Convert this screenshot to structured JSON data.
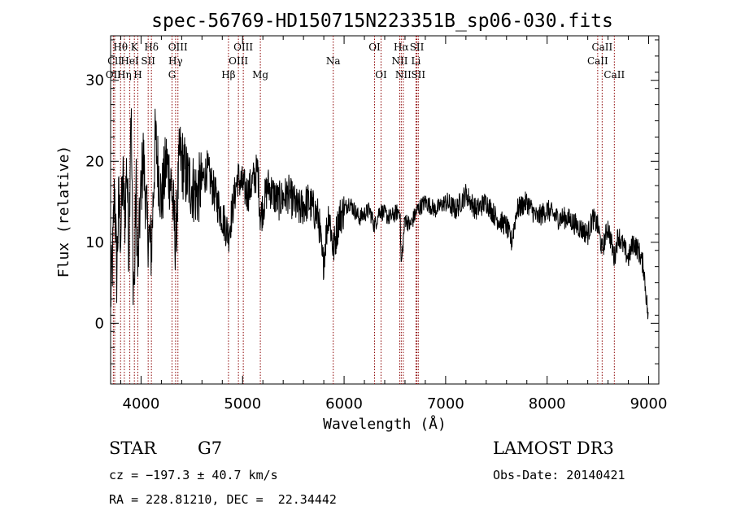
{
  "chart_data": {
    "type": "line",
    "title": "spec-56769-HD150715N223351B_sp06-030.fits",
    "xlabel": "Wavelength (Å)",
    "ylabel": "Flux (relative)",
    "xlim": [
      3700,
      9100
    ],
    "ylim": [
      -7.5,
      35.5
    ],
    "x_ticks": [
      "4000",
      "5000",
      "6000",
      "7000",
      "8000",
      "9000"
    ],
    "y_ticks": [
      "0",
      "10",
      "20",
      "30"
    ],
    "grid": false,
    "line_color": "#000000",
    "marker_color": "#8b0000",
    "series": [
      {
        "x": [
          3700,
          3720,
          3740,
          3760,
          3780,
          3800,
          3820,
          3840,
          3860,
          3880,
          3900,
          3920,
          3934,
          3950,
          3968,
          3990,
          4020,
          4060,
          4102,
          4140,
          4200,
          4250,
          4300,
          4340,
          4380,
          4450,
          4550,
          4650,
          4750,
          4861,
          4950,
          5050,
          5150,
          5175,
          5250,
          5350,
          5450,
          5550,
          5650,
          5750,
          5790,
          5850,
          5893,
          5950,
          6050,
          6150,
          6250,
          6300,
          6350,
          6450,
          6550,
          6563,
          6600,
          6650,
          6720,
          6800,
          6900,
          7000,
          7100,
          7200,
          7300,
          7400,
          7500,
          7600,
          7650,
          7700,
          7800,
          7900,
          8000,
          8100,
          8200,
          8300,
          8400,
          8450,
          8500,
          8542,
          8600,
          8662,
          8700,
          8800,
          8850,
          8900,
          8950,
          9000
        ],
        "y": [
          3,
          8,
          17,
          6,
          15,
          11,
          18,
          13,
          20,
          9,
          28,
          7,
          4,
          18,
          6,
          14,
          21,
          12,
          9,
          23,
          15,
          20,
          17,
          10,
          21,
          18,
          16,
          19,
          15,
          11,
          18,
          16,
          19,
          13,
          17,
          15,
          16,
          14,
          15,
          13,
          7,
          14,
          9,
          13,
          15,
          13,
          14,
          12,
          14,
          13,
          14,
          7,
          13,
          12,
          14,
          15,
          14,
          15,
          14,
          16,
          14,
          15,
          13,
          12,
          10,
          14,
          15,
          13,
          14,
          13,
          13,
          12,
          11,
          13,
          12,
          9,
          12,
          8,
          11,
          8,
          10,
          9,
          7,
          0
        ]
      }
    ],
    "lines": [
      {
        "name": "Hθ",
        "x": 3798,
        "row": 1
      },
      {
        "name": "OII",
        "x": 3727,
        "row": 3
      },
      {
        "name": "Hη",
        "x": 3835,
        "row": 3
      },
      {
        "name": "ClI",
        "x": 3740,
        "row": 2
      },
      {
        "name": "HeI",
        "x": 3889,
        "row": 2
      },
      {
        "name": "K",
        "x": 3934,
        "row": 1
      },
      {
        "name": "H",
        "x": 3968,
        "row": 3
      },
      {
        "name": "SII",
        "x": 4070,
        "row": 2
      },
      {
        "name": "Hδ",
        "x": 4102,
        "row": 1
      },
      {
        "name": "OIII",
        "x": 4363,
        "row": 1
      },
      {
        "name": "Hγ",
        "x": 4340,
        "row": 2
      },
      {
        "name": "G",
        "x": 4305,
        "row": 3
      },
      {
        "name": "Hβ",
        "x": 4861,
        "row": 3
      },
      {
        "name": "OIII",
        "x": 5007,
        "row": 1
      },
      {
        "name": "OIII",
        "x": 4959,
        "row": 2
      },
      {
        "name": "Mg",
        "x": 5175,
        "row": 3
      },
      {
        "name": "Na",
        "x": 5893,
        "row": 2
      },
      {
        "name": "OI",
        "x": 6300,
        "row": 1
      },
      {
        "name": "OI",
        "x": 6364,
        "row": 3
      },
      {
        "name": "Hα",
        "x": 6563,
        "row": 1
      },
      {
        "name": "NII",
        "x": 6548,
        "row": 2
      },
      {
        "name": "NII",
        "x": 6583,
        "row": 3
      },
      {
        "name": "SII",
        "x": 6717,
        "row": 1
      },
      {
        "name": "Li",
        "x": 6708,
        "row": 2
      },
      {
        "name": "SII",
        "x": 6731,
        "row": 3
      },
      {
        "name": "CaII",
        "x": 8542,
        "row": 1
      },
      {
        "name": "CaII",
        "x": 8498,
        "row": 2
      },
      {
        "name": "CaII",
        "x": 8662,
        "row": 3
      }
    ]
  },
  "info": {
    "object_class": "STAR",
    "subclass": "G7",
    "survey": "LAMOST DR3",
    "cz": "cz = −197.3 ± 40.7 km/s",
    "obs_date": "Obs-Date: 20140421",
    "radec": "RA = 228.81210, DEC =  22.34442"
  }
}
